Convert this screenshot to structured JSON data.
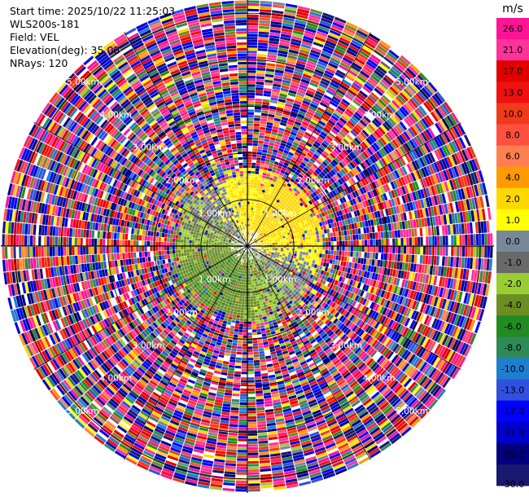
{
  "header": {
    "start_time": "Start time: 2025/10/22 11:25:03",
    "instrument": "WLS200s-181",
    "field": "Field: VEL",
    "elevation": "Elevation(deg): 35.00",
    "nrays": "NRays: 120"
  },
  "chart_data": {
    "type": "heatmap",
    "projection": "polar-ppi",
    "field": "VEL",
    "units": "m/s",
    "elevation_deg": 35.0,
    "n_rays": 120,
    "range_ring_labels": [
      "1.00km",
      "2.00km",
      "3.00km",
      "4.00km",
      "5.00km"
    ],
    "range_rings_km": [
      1,
      2,
      3,
      4,
      5
    ],
    "max_range_km": 5.3,
    "colorbar": {
      "title": "m/s",
      "tick_labels": [
        "26.0",
        "21.0",
        "17.0",
        "13.0",
        "10.0",
        "8.0",
        "6.0",
        "4.0",
        "2.0",
        "1.0",
        "0.0",
        "-1.0",
        "-2.0",
        "-4.0",
        "-6.0",
        "-8.0",
        "-10.0",
        "-13.0",
        "-17.0",
        "-21.0",
        "-26.0",
        "-30.0"
      ],
      "bins": [
        {
          "from": 26,
          "to": 30,
          "color": "#ff1493"
        },
        {
          "from": 21,
          "to": 26,
          "color": "#ff3399"
        },
        {
          "from": 17,
          "to": 21,
          "color": "#e00000"
        },
        {
          "from": 13,
          "to": 17,
          "color": "#f01010"
        },
        {
          "from": 10,
          "to": 13,
          "color": "#f03a1a"
        },
        {
          "from": 8,
          "to": 10,
          "color": "#ff5040"
        },
        {
          "from": 6,
          "to": 8,
          "color": "#ff7f50"
        },
        {
          "from": 4,
          "to": 6,
          "color": "#ff9a00"
        },
        {
          "from": 2,
          "to": 4,
          "color": "#ffd700"
        },
        {
          "from": 1,
          "to": 2,
          "color": "#ffff00"
        },
        {
          "from": 0,
          "to": 1,
          "color": "#778899"
        },
        {
          "from": -1,
          "to": 0,
          "color": "#696969"
        },
        {
          "from": -2,
          "to": -1,
          "color": "#9acd32"
        },
        {
          "from": -4,
          "to": -2,
          "color": "#6b8e23"
        },
        {
          "from": -6,
          "to": -4,
          "color": "#228b22"
        },
        {
          "from": -8,
          "to": -6,
          "color": "#2e8b57"
        },
        {
          "from": -10,
          "to": -8,
          "color": "#1e7fd0"
        },
        {
          "from": -13,
          "to": -10,
          "color": "#3050e0"
        },
        {
          "from": -17,
          "to": -13,
          "color": "#0000ff"
        },
        {
          "from": -21,
          "to": -17,
          "color": "#0000cd"
        },
        {
          "from": -26,
          "to": -21,
          "color": "#000080"
        },
        {
          "from": -30,
          "to": -26,
          "color": "#191970"
        }
      ]
    },
    "description_of_field": {
      "inner_region_km": 1.6,
      "inner_pattern": "yellow (positive) band on north and east sides, green/grey (negative) to south and west",
      "outer_pattern": "noisy random velocities across full scale beyond about 1.7 km"
    }
  }
}
